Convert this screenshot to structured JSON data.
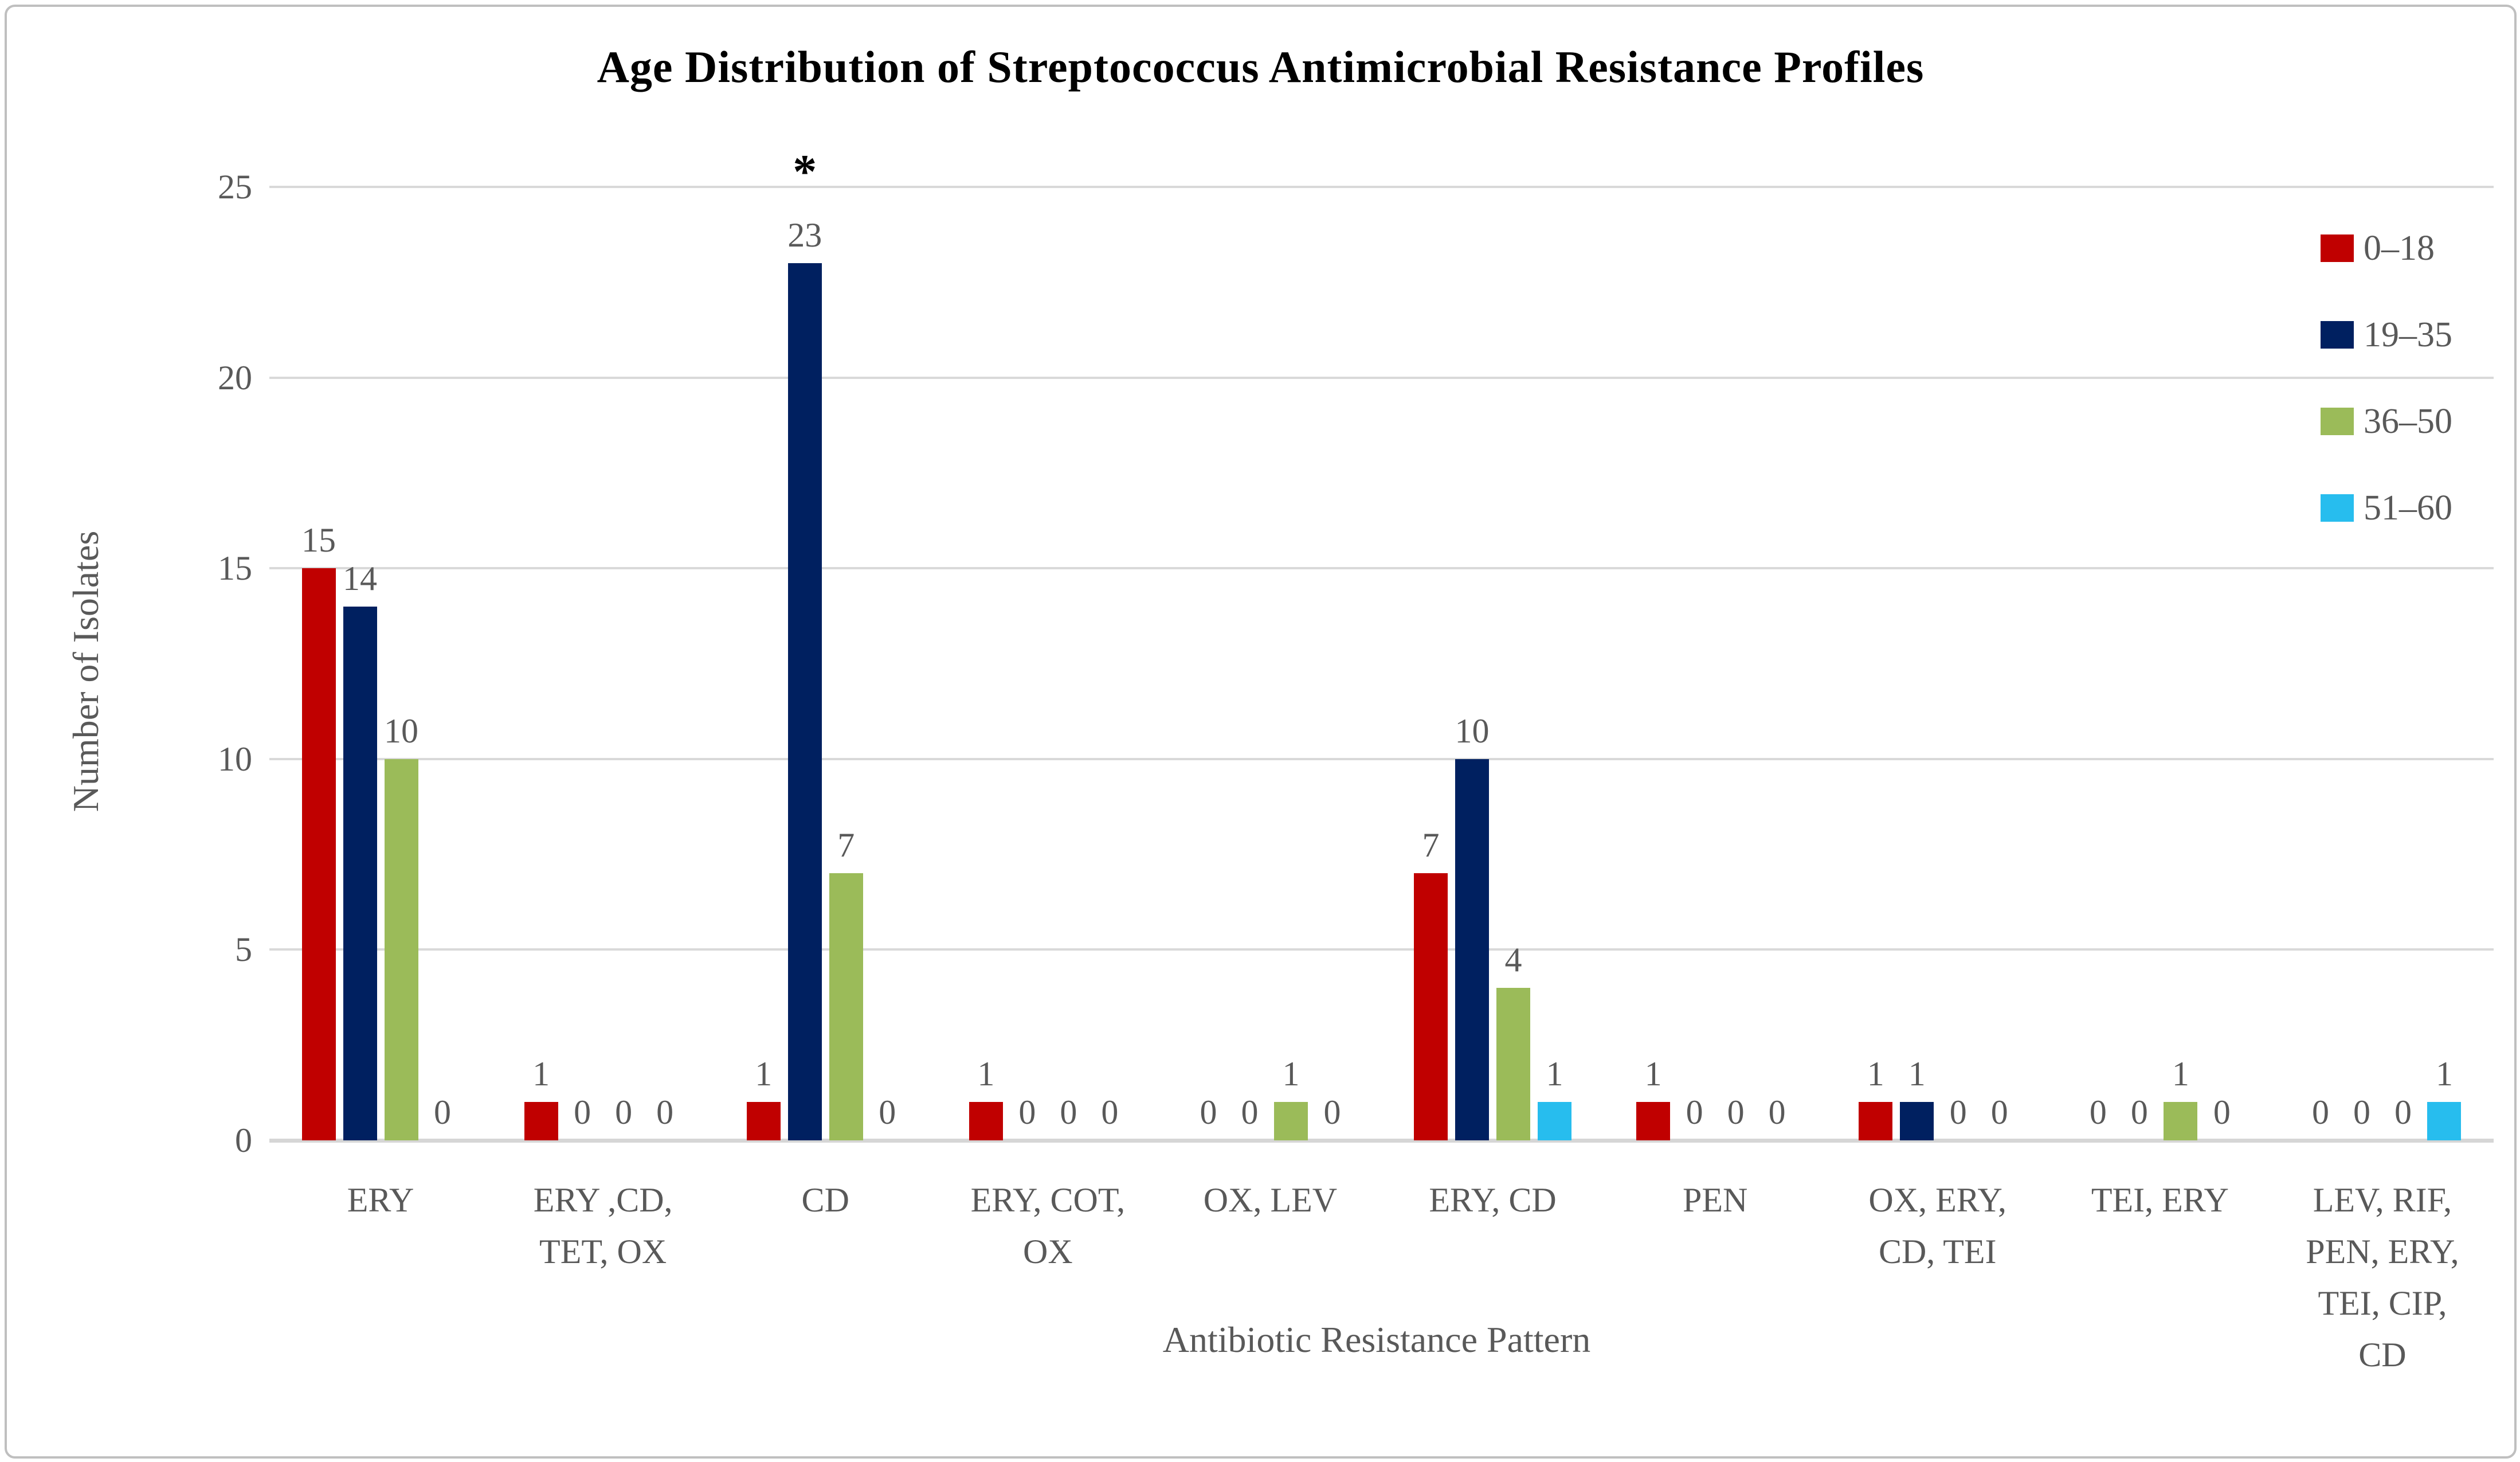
{
  "chart_data": {
    "type": "bar",
    "title": "Age Distribution of Streptococcus Antimicrobial Resistance Profiles",
    "xlabel": "Antibiotic Resistance Pattern",
    "ylabel": "Number of Isolates",
    "ylim": [
      0,
      25
    ],
    "yticks": [
      0,
      5,
      10,
      15,
      20,
      25
    ],
    "grid": "horizontal",
    "legend_position": "right",
    "data_labels": true,
    "categories": [
      "ERY",
      "ERY ,CD, TET, OX",
      "CD",
      "ERY, COT, OX",
      "OX, LEV",
      "ERY, CD",
      "PEN",
      "OX, ERY, CD, TEI",
      "TEI, ERY",
      "LEV, RIF, PEN, ERY, TEI, CIP, CD"
    ],
    "category_label_lines": [
      [
        "ERY"
      ],
      [
        "ERY ,CD,",
        "TET, OX"
      ],
      [
        "CD"
      ],
      [
        "ERY, COT,",
        "OX"
      ],
      [
        "OX, LEV"
      ],
      [
        "ERY, CD"
      ],
      [
        "PEN"
      ],
      [
        "OX, ERY,",
        "CD, TEI"
      ],
      [
        "TEI, ERY"
      ],
      [
        "LEV, RIF,",
        "PEN, ERY,",
        "TEI, CIP,",
        "CD"
      ]
    ],
    "series": [
      {
        "name": "0–18",
        "color": "#C00000",
        "values": [
          15,
          1,
          1,
          1,
          0,
          7,
          1,
          1,
          0,
          0
        ]
      },
      {
        "name": "19–35",
        "color": "#002060",
        "values": [
          14,
          0,
          23,
          0,
          0,
          10,
          0,
          1,
          0,
          0
        ]
      },
      {
        "name": "36–50",
        "color": "#9BBB59",
        "values": [
          10,
          0,
          7,
          0,
          1,
          4,
          0,
          0,
          1,
          0
        ]
      },
      {
        "name": "51–60",
        "color": "#27BDEE",
        "values": [
          0,
          0,
          0,
          0,
          0,
          1,
          0,
          0,
          0,
          1
        ]
      }
    ],
    "annotations": [
      {
        "text": "*",
        "category_index": 2,
        "series_index": 1
      }
    ]
  },
  "colors": {
    "gridline": "#D9D9D9",
    "axis_text": "#595959",
    "title_text": "#000000",
    "frame_border": "#BFBFBF"
  }
}
